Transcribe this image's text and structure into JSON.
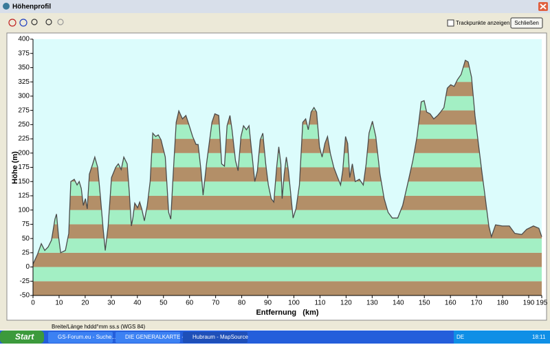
{
  "window": {
    "title": "Höhenprofil",
    "checkbox": "Trackpunkte anzeigen",
    "close_button": "Schließen",
    "status": "Breite/Länge hddd°mm ss.s (WGS 84)"
  },
  "taskbar": {
    "start": "Start",
    "tasks": [
      "GS-Forum.eu - Suche...",
      "DIE GENERALKARTE -...",
      "Hubraum - MapSource"
    ],
    "language": "DE",
    "clock": "18:11"
  },
  "chart_data": {
    "type": "area",
    "xlabel": "Entfernung   (km)",
    "ylabel": "Höhe (m)",
    "x": [
      0,
      1.8,
      3.2,
      4.5,
      5.8,
      7.1,
      8.4,
      9,
      9.8,
      10.6,
      12.4,
      13.7,
      14.5,
      15.8,
      16.9,
      17.7,
      18.5,
      19.3,
      20.1,
      20.8,
      21.6,
      22.9,
      23.7,
      24.8,
      25.9,
      26.9,
      27.7,
      28.8,
      30.1,
      31.7,
      32.7,
      33.8,
      34.8,
      36.1,
      36.9,
      37.7,
      38.3,
      39,
      40.1,
      40.9,
      41.7,
      42.7,
      43.8,
      44.9,
      45.9,
      47,
      48,
      49.1,
      50.7,
      52,
      52.8,
      53.8,
      54.9,
      55.9,
      57.3,
      58.6,
      59.9,
      61.2,
      62.5,
      63.3,
      64.4,
      65.2,
      66.5,
      68.6,
      69.7,
      71.2,
      72.3,
      73.4,
      74.4,
      75.5,
      76.3,
      77.6,
      78.6,
      79.7,
      80.7,
      81.8,
      82.8,
      83.9,
      85,
      86,
      87.1,
      88.1,
      89.2,
      90.2,
      91.3,
      92.3,
      93.4,
      94.2,
      95,
      95.5,
      96.3,
      97.1,
      97.9,
      98.7,
      99.7,
      100.8,
      102.1,
      103.4,
      104.5,
      105.5,
      106.6,
      107.7,
      108.7,
      109.8,
      110.8,
      111.9,
      112.9,
      114,
      115.3,
      116.6,
      117.9,
      118.7,
      119.8,
      120.6,
      121.4,
      122.4,
      123.5,
      125.1,
      126.6,
      127.7,
      128.8,
      130.1,
      131.4,
      133,
      134.6,
      136.1,
      137.7,
      139.8,
      141.7,
      143.5,
      145.6,
      147.2,
      148.8,
      149.9,
      150.9,
      152.2,
      153.6,
      155.1,
      156.2,
      157.5,
      158.8,
      160.1,
      161.4,
      162.7,
      164.1,
      165.7,
      166.8,
      168.1,
      169.4,
      170.7,
      172,
      173.4,
      174.7,
      175.7,
      177.3,
      179.9,
      182.6,
      184.7,
      187.3,
      189.2,
      191.8,
      193.9,
      195
    ],
    "values": [
      5,
      23,
      41,
      29,
      35,
      47,
      84,
      93,
      53,
      25,
      29,
      59,
      150,
      154,
      144,
      150,
      138,
      108,
      120,
      102,
      163,
      181,
      193,
      175,
      120,
      66,
      29,
      72,
      157,
      175,
      181,
      171,
      193,
      181,
      132,
      72,
      86,
      112,
      104,
      114,
      102,
      81,
      108,
      150,
      235,
      229,
      232,
      223,
      193,
      96,
      84,
      169,
      254,
      274,
      260,
      266,
      248,
      229,
      215,
      215,
      169,
      126,
      181,
      254,
      269,
      266,
      181,
      177,
      248,
      266,
      241,
      187,
      169,
      229,
      248,
      241,
      248,
      199,
      150,
      169,
      223,
      235,
      181,
      144,
      120,
      114,
      175,
      211,
      181,
      120,
      163,
      193,
      169,
      132,
      86,
      102,
      144,
      254,
      260,
      241,
      272,
      280,
      272,
      211,
      193,
      217,
      229,
      199,
      175,
      159,
      144,
      169,
      229,
      217,
      157,
      181,
      150,
      154,
      144,
      181,
      235,
      256,
      229,
      163,
      120,
      96,
      86,
      86,
      108,
      144,
      187,
      229,
      290,
      292,
      272,
      269,
      260,
      266,
      272,
      280,
      314,
      320,
      317,
      329,
      338,
      363,
      360,
      333,
      266,
      217,
      169,
      120,
      72,
      53,
      74,
      72,
      72,
      59,
      57,
      66,
      72,
      68,
      53
    ],
    "xlim": [
      0,
      195
    ],
    "ylim": [
      -50,
      400
    ],
    "xticks": [
      0,
      10,
      20,
      30,
      40,
      50,
      60,
      70,
      80,
      90,
      100,
      110,
      120,
      130,
      140,
      150,
      160,
      170,
      180,
      190,
      195
    ],
    "yticks": [
      -50,
      -25,
      0,
      25,
      50,
      75,
      100,
      125,
      150,
      175,
      200,
      225,
      250,
      275,
      300,
      325,
      350,
      375,
      400
    ],
    "band_colors": [
      "#b38f68",
      "#a3efc4"
    ],
    "line_color": "#4a4a4a",
    "background": "#dcfcfc"
  }
}
